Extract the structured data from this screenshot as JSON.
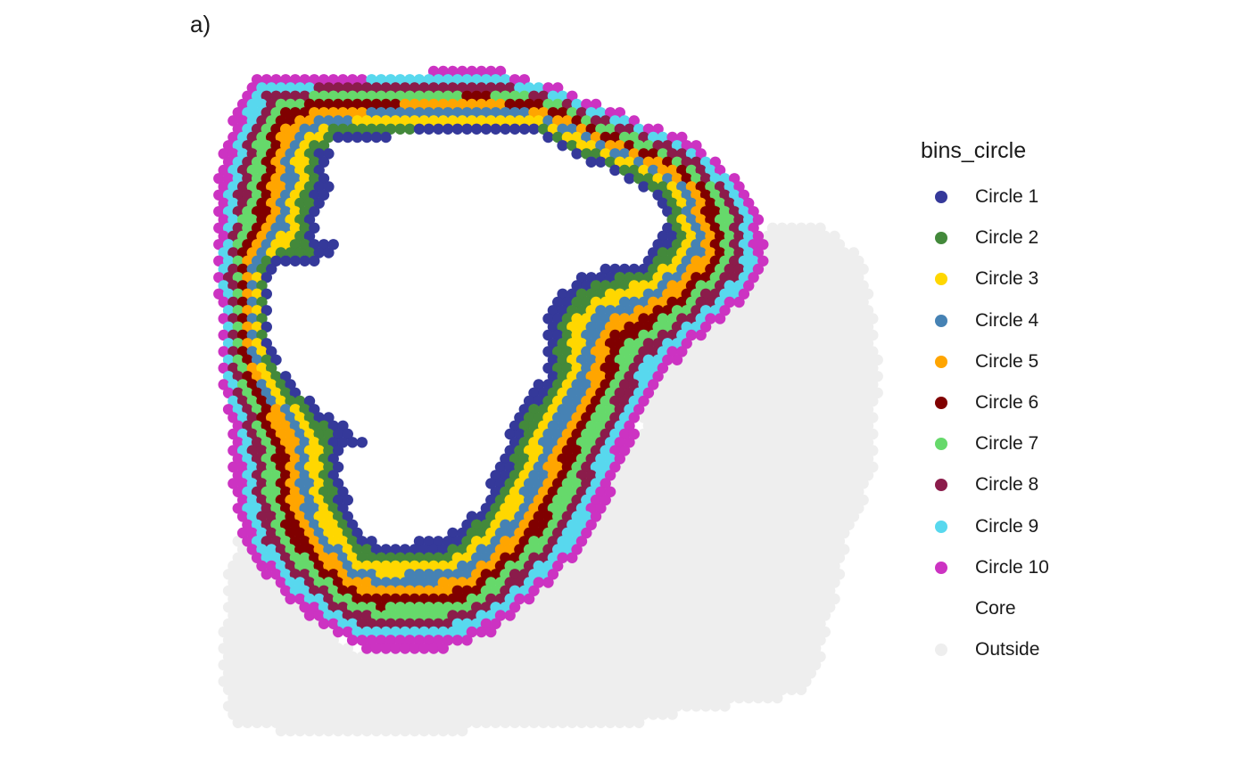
{
  "panel_tag": "a)",
  "chart_data": {
    "type": "scatter",
    "legend": {
      "title": "bins_circle",
      "position": "right",
      "entries": [
        {
          "name": "Circle 1",
          "color": "#35399a"
        },
        {
          "name": "Circle 2",
          "color": "#43893b"
        },
        {
          "name": "Circle 3",
          "color": "#ffd700"
        },
        {
          "name": "Circle 4",
          "color": "#4682b4"
        },
        {
          "name": "Circle 5",
          "color": "#ffa500"
        },
        {
          "name": "Circle 6",
          "color": "#800000"
        },
        {
          "name": "Circle 7",
          "color": "#66d96b"
        },
        {
          "name": "Circle 8",
          "color": "#8b1c4b"
        },
        {
          "name": "Circle 9",
          "color": "#58d8ee"
        },
        {
          "name": "Circle 10",
          "color": "#cc33c2"
        },
        {
          "name": "Core",
          "color": "#ffffff"
        },
        {
          "name": "Outside",
          "color": "#eeeeee"
        }
      ]
    },
    "axes": "none",
    "grid": false,
    "spot_layout": "hexagonal"
  }
}
